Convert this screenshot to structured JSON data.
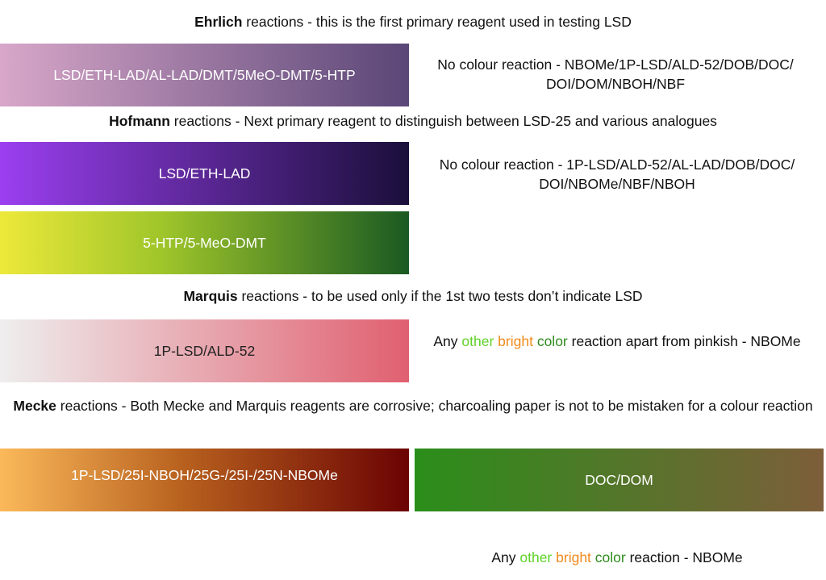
{
  "sections": {
    "ehrlich": {
      "name": "Ehrlich",
      "rest": " reactions - this is the first primary reagent used in testing LSD",
      "bar_label": "LSD/ETH-LAD/AL-LAD/DMT/5MeO-DMT/5-HTP",
      "note": "No colour reaction - NBOMe/1P-LSD/ALD-52/DOB/DOC/ DOI/DOM/NBOH/NBF",
      "gradient": [
        "#d8a7c9",
        "#5a4677"
      ]
    },
    "hofmann": {
      "name": "Hofmann",
      "rest": " reactions - Next primary reagent to distinguish between LSD-25 and various analogues",
      "bar1_label": "LSD/ETH-LAD",
      "bar2_label": "5-HTP/5-MeO-DMT",
      "note": "No colour reaction - 1P-LSD/ALD-52/AL-LAD/DOB/DOC/ DOI/NBOMe/NBF/NBOH",
      "gradient1": [
        "#9b3ff0",
        "#1a0f3a"
      ],
      "gradient2": [
        "#ede93a",
        "#1a5a22"
      ]
    },
    "marquis": {
      "name": "Marquis",
      "rest": " reactions - to be used only if the 1st two tests don’t indicate LSD",
      "bar_label": "1P-LSD/ALD-52",
      "note_pre": "Any ",
      "note_other": "other",
      "note_bright": "bright",
      "note_color": "color",
      "note_post": " reaction apart from pinkish - NBOMe",
      "gradient": [
        "#eeeeee",
        "#e06070"
      ]
    },
    "mecke": {
      "name": "Mecke",
      "rest": " reactions - Both Mecke and Marquis reagents are corrosive; charcoaling paper is not to be mistaken for a colour reaction",
      "bar1_label": "1P-LSD/25I-NBOH/25G-/25I-/25N-NBOMe",
      "bar2_label": "DOC/DOM",
      "note_pre": "Any ",
      "note_other": "other",
      "note_bright": "bright",
      "note_color": "color",
      "note_post": " reaction - NBOMe",
      "gradient1": [
        "#fbb95a",
        "#6b0303"
      ],
      "gradient2": [
        "#2a8e1a",
        "#7d5e3a"
      ]
    }
  }
}
